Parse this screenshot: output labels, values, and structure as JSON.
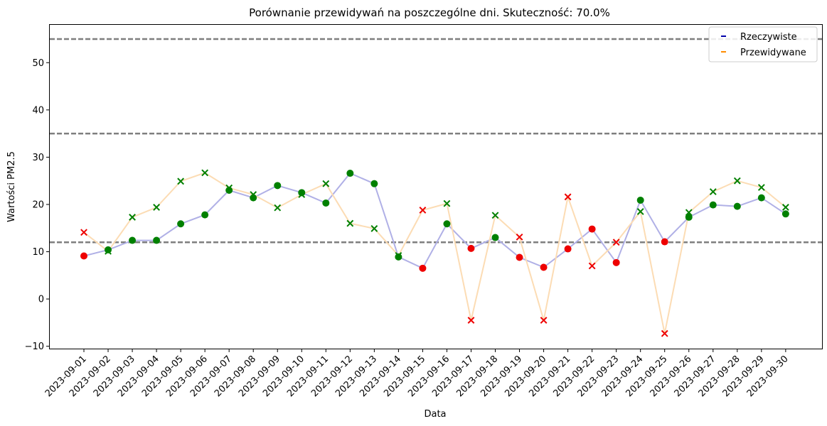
{
  "chart_data": {
    "type": "line",
    "title": "Porównanie przewidywań na poszczególne dni. Skuteczność: 70.0%",
    "xlabel": "Data",
    "ylabel": "Wartości PM2.5",
    "ylim": [
      -10.5,
      58
    ],
    "yticks": [
      -10,
      0,
      10,
      20,
      30,
      40,
      50
    ],
    "grid": false,
    "legend_position": "top-right",
    "reference_lines": [
      12,
      35,
      55
    ],
    "categories": [
      "2023-09-01",
      "2023-09-02",
      "2023-09-03",
      "2023-09-04",
      "2023-09-05",
      "2023-09-06",
      "2023-09-07",
      "2023-09-08",
      "2023-09-09",
      "2023-09-10",
      "2023-09-11",
      "2023-09-12",
      "2023-09-13",
      "2023-09-14",
      "2023-09-15",
      "2023-09-16",
      "2023-09-17",
      "2023-09-18",
      "2023-09-19",
      "2023-09-20",
      "2023-09-21",
      "2023-09-22",
      "2023-09-23",
      "2023-09-24",
      "2023-09-25",
      "2023-09-26",
      "2023-09-27",
      "2023-09-28",
      "2023-09-29",
      "2023-09-30"
    ],
    "correct": [
      false,
      true,
      true,
      true,
      true,
      true,
      true,
      true,
      true,
      true,
      true,
      true,
      true,
      true,
      false,
      true,
      false,
      true,
      false,
      false,
      false,
      false,
      false,
      true,
      false,
      true,
      true,
      true,
      true,
      true
    ],
    "series": [
      {
        "name": "Rzeczywiste",
        "marker": "circle",
        "legend_color": "#0000aa",
        "line_color": "#b0b0e6",
        "values": [
          9.1,
          10.4,
          12.4,
          12.4,
          15.9,
          17.8,
          23.0,
          21.4,
          24.0,
          22.5,
          20.3,
          26.6,
          24.4,
          8.9,
          6.5,
          15.9,
          10.7,
          13.0,
          8.8,
          6.7,
          10.6,
          14.8,
          7.7,
          20.9,
          12.1,
          17.3,
          19.9,
          19.6,
          21.4,
          18.0
        ]
      },
      {
        "name": "Przewidywane",
        "marker": "x",
        "legend_color": "#ff8c00",
        "line_color": "#fcdcb4",
        "values": [
          14.1,
          10.1,
          17.3,
          19.4,
          24.9,
          26.7,
          23.5,
          22.1,
          19.3,
          22.1,
          24.4,
          16.0,
          14.9,
          9.2,
          18.8,
          20.2,
          -4.5,
          17.7,
          13.1,
          -4.5,
          21.6,
          7.0,
          12.0,
          18.5,
          -7.3,
          18.3,
          22.7,
          25.0,
          23.6,
          19.4
        ]
      }
    ],
    "status_colors": {
      "correct": "#008000",
      "incorrect": "#ee0000"
    },
    "ref_line_color": "#7f7f7f"
  }
}
